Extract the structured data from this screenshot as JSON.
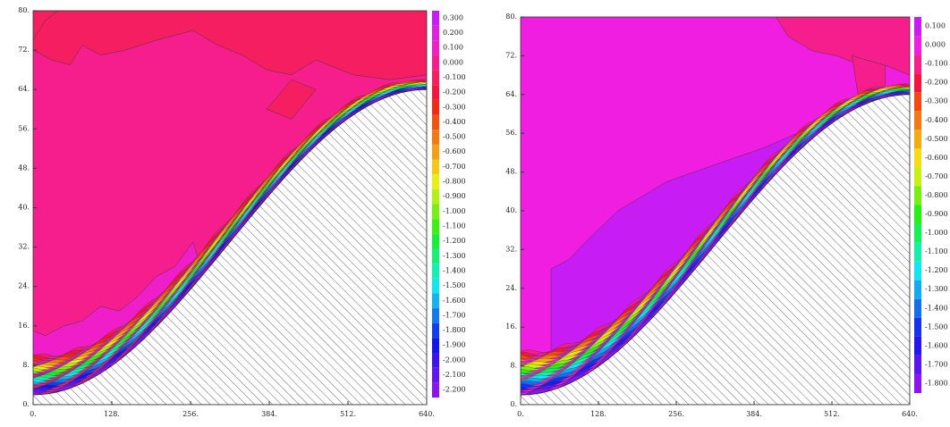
{
  "chart_data": [
    {
      "type": "contour",
      "xlim": [
        0,
        640
      ],
      "ylim": [
        0,
        80
      ],
      "xticks": [
        {
          "value": 0,
          "label": "0."
        },
        {
          "value": 128,
          "label": "128."
        },
        {
          "value": 256,
          "label": "256."
        },
        {
          "value": 384,
          "label": "384."
        },
        {
          "value": 512,
          "label": "512."
        },
        {
          "value": 640,
          "label": "640."
        }
      ],
      "yticks": [
        {
          "value": 0,
          "label": "0."
        },
        {
          "value": 8,
          "label": "8."
        },
        {
          "value": 16,
          "label": "16."
        },
        {
          "value": 24,
          "label": "24."
        },
        {
          "value": 32,
          "label": "32."
        },
        {
          "value": 40,
          "label": "40."
        },
        {
          "value": 48,
          "label": "48."
        },
        {
          "value": 56,
          "label": "56."
        },
        {
          "value": 64,
          "label": "64."
        },
        {
          "value": 72,
          "label": "72."
        },
        {
          "value": 80,
          "label": "80."
        }
      ],
      "base_level": 0,
      "levels": [
        {
          "value": 0.3,
          "label": "0.300"
        },
        {
          "value": 0.2,
          "label": "0.200"
        },
        {
          "value": 0.1,
          "label": "0.100"
        },
        {
          "value": 0,
          "label": "0.000"
        },
        {
          "value": -0.1,
          "label": "-0.100"
        },
        {
          "value": -0.2,
          "label": "-0.200"
        },
        {
          "value": -0.3,
          "label": "-0.300"
        },
        {
          "value": -0.4,
          "label": "-0.400"
        },
        {
          "value": -0.5,
          "label": "-0.500"
        },
        {
          "value": -0.6,
          "label": "-0.600"
        },
        {
          "value": -0.7,
          "label": "-0.700"
        },
        {
          "value": -0.8,
          "label": "-0.800"
        },
        {
          "value": -0.9,
          "label": "-0.900"
        },
        {
          "value": -1.0,
          "label": "-1.000"
        },
        {
          "value": -1.1,
          "label": "-1.100"
        },
        {
          "value": -1.2,
          "label": "-1.200"
        },
        {
          "value": -1.3,
          "label": "-1.300"
        },
        {
          "value": -1.4,
          "label": "-1.400"
        },
        {
          "value": -1.5,
          "label": "-1.500"
        },
        {
          "value": -1.6,
          "label": "-1.600"
        },
        {
          "value": -1.7,
          "label": "-1.700"
        },
        {
          "value": -1.8,
          "label": "-1.800"
        },
        {
          "value": -1.9,
          "label": "-1.900"
        },
        {
          "value": -2.0,
          "label": "-2.000"
        },
        {
          "value": -2.1,
          "label": "-2.100"
        },
        {
          "value": -2.2,
          "label": "-2.200"
        }
      ],
      "colors": [
        "#c81cf5",
        "#e01ee6",
        "#f01ec8",
        "#f51e8c",
        "#f51e60",
        "#f5143c",
        "#f52814",
        "#f55014",
        "#f57814",
        "#f5a014",
        "#f5c814",
        "#e6f014",
        "#b4f014",
        "#78f014",
        "#3cf014",
        "#14f03c",
        "#14f078",
        "#14f0b4",
        "#14e6f0",
        "#14b4f0",
        "#1478f0",
        "#143cf0",
        "#1414f0",
        "#3c14f0",
        "#6414f0",
        "#8c14f0"
      ]
    },
    {
      "type": "contour",
      "xlim": [
        0,
        640
      ],
      "ylim": [
        0,
        80
      ],
      "xticks": [
        {
          "value": 0,
          "label": "0."
        },
        {
          "value": 128,
          "label": "128."
        },
        {
          "value": 256,
          "label": "256."
        },
        {
          "value": 384,
          "label": "384."
        },
        {
          "value": 512,
          "label": "512."
        },
        {
          "value": 640,
          "label": "640."
        }
      ],
      "yticks": [
        {
          "value": 0,
          "label": "0."
        },
        {
          "value": 8,
          "label": "8."
        },
        {
          "value": 16,
          "label": "16."
        },
        {
          "value": 24,
          "label": "24."
        },
        {
          "value": 32,
          "label": "32."
        },
        {
          "value": 40,
          "label": "40."
        },
        {
          "value": 48,
          "label": "48."
        },
        {
          "value": 56,
          "label": "56."
        },
        {
          "value": 64,
          "label": "64."
        },
        {
          "value": 72,
          "label": "72."
        },
        {
          "value": 80,
          "label": "80."
        }
      ],
      "base_level": 0,
      "levels": [
        {
          "value": 0.1,
          "label": "0.100"
        },
        {
          "value": 0,
          "label": "0.000"
        },
        {
          "value": -0.1,
          "label": "-0.100"
        },
        {
          "value": -0.2,
          "label": "-0.200"
        },
        {
          "value": -0.3,
          "label": "-0.300"
        },
        {
          "value": -0.4,
          "label": "-0.400"
        },
        {
          "value": -0.5,
          "label": "-0.500"
        },
        {
          "value": -0.6,
          "label": "-0.600"
        },
        {
          "value": -0.7,
          "label": "-0.700"
        },
        {
          "value": -0.8,
          "label": "-0.800"
        },
        {
          "value": -0.9,
          "label": "-0.900"
        },
        {
          "value": -1.0,
          "label": "-1.000"
        },
        {
          "value": -1.1,
          "label": "-1.100"
        },
        {
          "value": -1.2,
          "label": "-1.200"
        },
        {
          "value": -1.3,
          "label": "-1.300"
        },
        {
          "value": -1.4,
          "label": "-1.400"
        },
        {
          "value": -1.5,
          "label": "-1.500"
        },
        {
          "value": -1.6,
          "label": "-1.600"
        },
        {
          "value": -1.7,
          "label": "-1.700"
        },
        {
          "value": -1.8,
          "label": "-1.800"
        }
      ],
      "colors": [
        "#c81cf5",
        "#f01ee0",
        "#f51e8c",
        "#f5143c",
        "#f54614",
        "#f57814",
        "#f5aa14",
        "#f5dc14",
        "#c8f014",
        "#78f014",
        "#28f014",
        "#14f05a",
        "#14f0aa",
        "#14e6f0",
        "#14aaf0",
        "#146ef0",
        "#1432f0",
        "#2814f0",
        "#5a14f0",
        "#8c14f0"
      ]
    }
  ]
}
